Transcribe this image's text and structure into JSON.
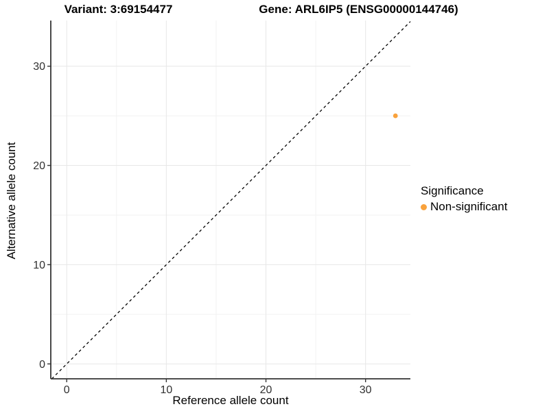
{
  "titles": {
    "variant": "Variant: 3:69154477",
    "gene": "Gene: ARL6IP5 (ENSG00000144746)"
  },
  "chart_data": {
    "type": "scatter",
    "title": "Variant: 3:69154477  /  Gene: ARL6IP5 (ENSG00000144746)",
    "xlabel": "Reference allele count",
    "ylabel": "Alternative allele count",
    "xlim": [
      -1.6,
      34.5
    ],
    "ylim": [
      -1.5,
      34.6
    ],
    "x_ticks": [
      0,
      10,
      20,
      30
    ],
    "y_ticks": [
      0,
      10,
      20,
      30
    ],
    "x_minor_ticks": [
      5,
      15,
      25
    ],
    "y_minor_ticks": [
      5,
      15,
      25
    ],
    "grid": true,
    "legend_position": "right",
    "points": [
      {
        "x": 33,
        "y": 25,
        "series": "Non-significant",
        "color": "#F9A23C"
      }
    ],
    "reference_line": {
      "kind": "abline",
      "slope": 1,
      "intercept": 0,
      "style": "dashed",
      "color": "#000000"
    },
    "legend": {
      "title": "Significance",
      "entries": [
        {
          "label": "Non-significant",
          "color": "#F9A23C",
          "marker": "circle"
        }
      ]
    }
  },
  "colors": {
    "background": "#FFFFFF",
    "axis_line": "#333333",
    "tick_label": "#303030",
    "grid_major": "#E7E7E7",
    "grid_minor": "#F2F2F2",
    "point_orange": "#F9A23C"
  }
}
